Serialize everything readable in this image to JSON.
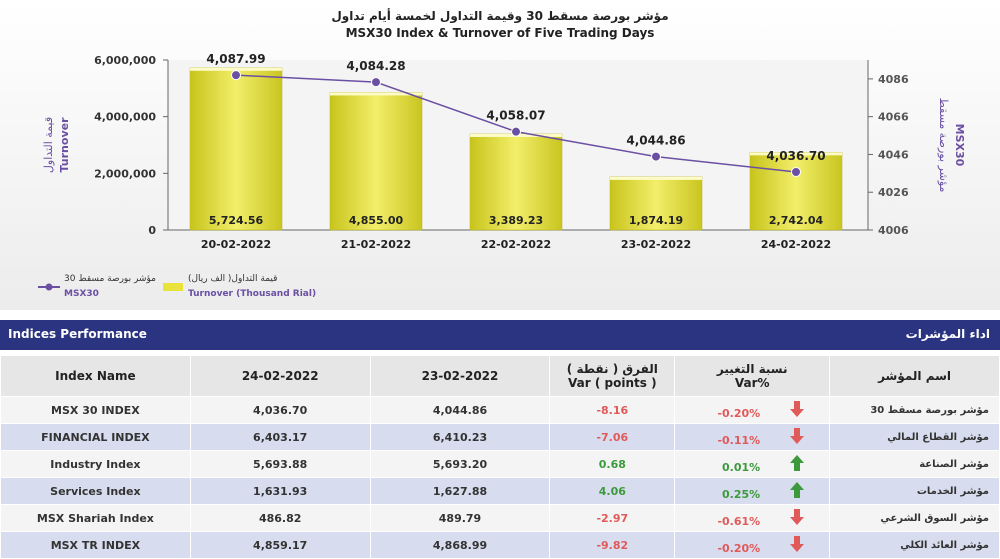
{
  "chart_data": {
    "type": "bar+line",
    "title_ar": "مؤشر بورصة مسقط 30 وقيمة التداول لخمسة أيام تداول",
    "title_en": "MSX30 Index & Turnover of Five Trading Days",
    "categories": [
      "20-02-2022",
      "21-02-2022",
      "22-02-2022",
      "23-02-2022",
      "24-02-2022"
    ],
    "series": [
      {
        "name": "Turnover (Thousand Rial)",
        "name_ar": "قيمة التداول( الف ريال)",
        "kind": "bar",
        "axis": "left",
        "values": [
          5724.56,
          4855.0,
          3389.23,
          1874.19,
          2742.04
        ],
        "labels": [
          "5,724.56",
          "4,855.00",
          "3,389.23",
          "1,874.19",
          "2,742.04"
        ]
      },
      {
        "name": "MSX30",
        "name_ar": "مؤشر بورصة مسقط 30",
        "kind": "line",
        "axis": "right",
        "values": [
          4087.99,
          4084.28,
          4058.07,
          4044.86,
          4036.7
        ],
        "labels": [
          "4,087.99",
          "4,084.28",
          "4,058.07",
          "4,044.86",
          "4,036.70"
        ]
      }
    ],
    "left_axis": {
      "label_ar": "قيمة التداول",
      "label_en": "Turnover",
      "range": [
        0,
        6000000
      ],
      "ticks": [
        0,
        2000000,
        4000000,
        6000000
      ],
      "tick_labels": [
        "0",
        "2,000,000",
        "4,000,000",
        "6,000,000"
      ]
    },
    "right_axis": {
      "label_ar": "مؤشر بورصة مسقط",
      "label_en": "MSX30",
      "range": [
        4006,
        4096
      ],
      "ticks": [
        4006,
        4026,
        4046,
        4066,
        4086
      ],
      "tick_labels": [
        "4006",
        "4026",
        "4046",
        "4066",
        "4086"
      ]
    },
    "legend": {
      "placement": "bottom-left"
    }
  },
  "section": {
    "title_en": "Indices Performance",
    "title_ar": "اداء المؤشرات"
  },
  "table": {
    "headers": {
      "name": "Index Name",
      "date1": "24-02-2022",
      "date2": "23-02-2022",
      "var_ar": "الفرق ( نقطة )",
      "var_en": "Var ( points )",
      "pct_ar": "نسبة التغيير",
      "pct_en": "Var%",
      "name_ar": "اسم المؤشر"
    },
    "rows": [
      {
        "name": "MSX 30 INDEX",
        "v1": "4,036.70",
        "v2": "4,044.86",
        "var": "-8.16",
        "pct": "-0.20%",
        "dir": "down",
        "name_ar": "مؤشر بورصة مسقط 30"
      },
      {
        "name": "FINANCIAL INDEX",
        "v1": "6,403.17",
        "v2": "6,410.23",
        "var": "-7.06",
        "pct": "-0.11%",
        "dir": "down",
        "name_ar": "مؤشر القطاع المالي"
      },
      {
        "name": "Industry Index",
        "v1": "5,693.88",
        "v2": "5,693.20",
        "var": "0.68",
        "pct": "0.01%",
        "dir": "up",
        "name_ar": "مؤشر الصناعة"
      },
      {
        "name": "Services Index",
        "v1": "1,631.93",
        "v2": "1,627.88",
        "var": "4.06",
        "pct": "0.25%",
        "dir": "up",
        "name_ar": "مؤشر الخدمات"
      },
      {
        "name": "MSX Shariah Index",
        "v1": "486.82",
        "v2": "489.79",
        "var": "-2.97",
        "pct": "-0.61%",
        "dir": "down",
        "name_ar": "مؤشر السوق الشرعي"
      },
      {
        "name": "MSX TR INDEX",
        "v1": "4,859.17",
        "v2": "4,868.99",
        "var": "-9.82",
        "pct": "-0.20%",
        "dir": "down",
        "name_ar": "مؤشر العائد الكلي"
      }
    ]
  },
  "colors": {
    "bar": "#e8e23a",
    "line": "#6a4fa3",
    "header": "#2b3481",
    "up": "#3c9a3c",
    "down": "#e05a5a"
  }
}
